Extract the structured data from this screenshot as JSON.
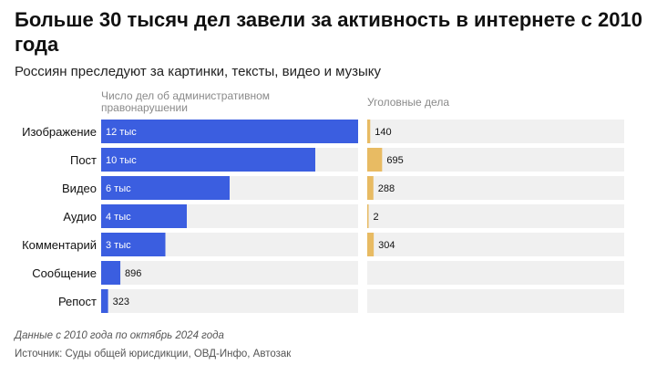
{
  "title": "Больше 30 тысяч дел завели за активность в интернете с 2010 года",
  "subtitle": "Россиян преследуют за картинки, тексты, видео и музыку",
  "footnote": "Данные с 2010 года по октябрь 2024 года",
  "source": "Источник: Суды общей юрисдикции, ОВД-Инфо, Автозак",
  "colors": {
    "admin_bar": "#3b5ee0",
    "criminal_bar": "#e8bb63",
    "track": "#f0f0f0",
    "label_inside": "#ffffff",
    "label_outside": "#111111"
  },
  "chart_data": [
    {
      "type": "bar",
      "orientation": "horizontal",
      "title": "Число дел об административном правонарушении",
      "categories": [
        "Изображение",
        "Пост",
        "Видео",
        "Аудио",
        "Комментарий",
        "Сообщение",
        "Репост"
      ],
      "values": [
        12000,
        10000,
        6000,
        4000,
        3000,
        896,
        323
      ],
      "value_labels": [
        "12 тыс",
        "10 тыс",
        "6 тыс",
        "4 тыс",
        "3 тыс",
        "896",
        "323"
      ],
      "xlim": [
        0,
        12000
      ],
      "grid": false
    },
    {
      "type": "bar",
      "orientation": "horizontal",
      "title": "Уголовные дела",
      "categories": [
        "Изображение",
        "Пост",
        "Видео",
        "Аудио",
        "Комментарий",
        "Сообщение",
        "Репост"
      ],
      "values": [
        140,
        695,
        288,
        2,
        304,
        null,
        null
      ],
      "value_labels": [
        "140",
        "695",
        "288",
        "2",
        "304",
        "",
        ""
      ],
      "xlim": [
        0,
        12000
      ],
      "grid": false
    }
  ]
}
